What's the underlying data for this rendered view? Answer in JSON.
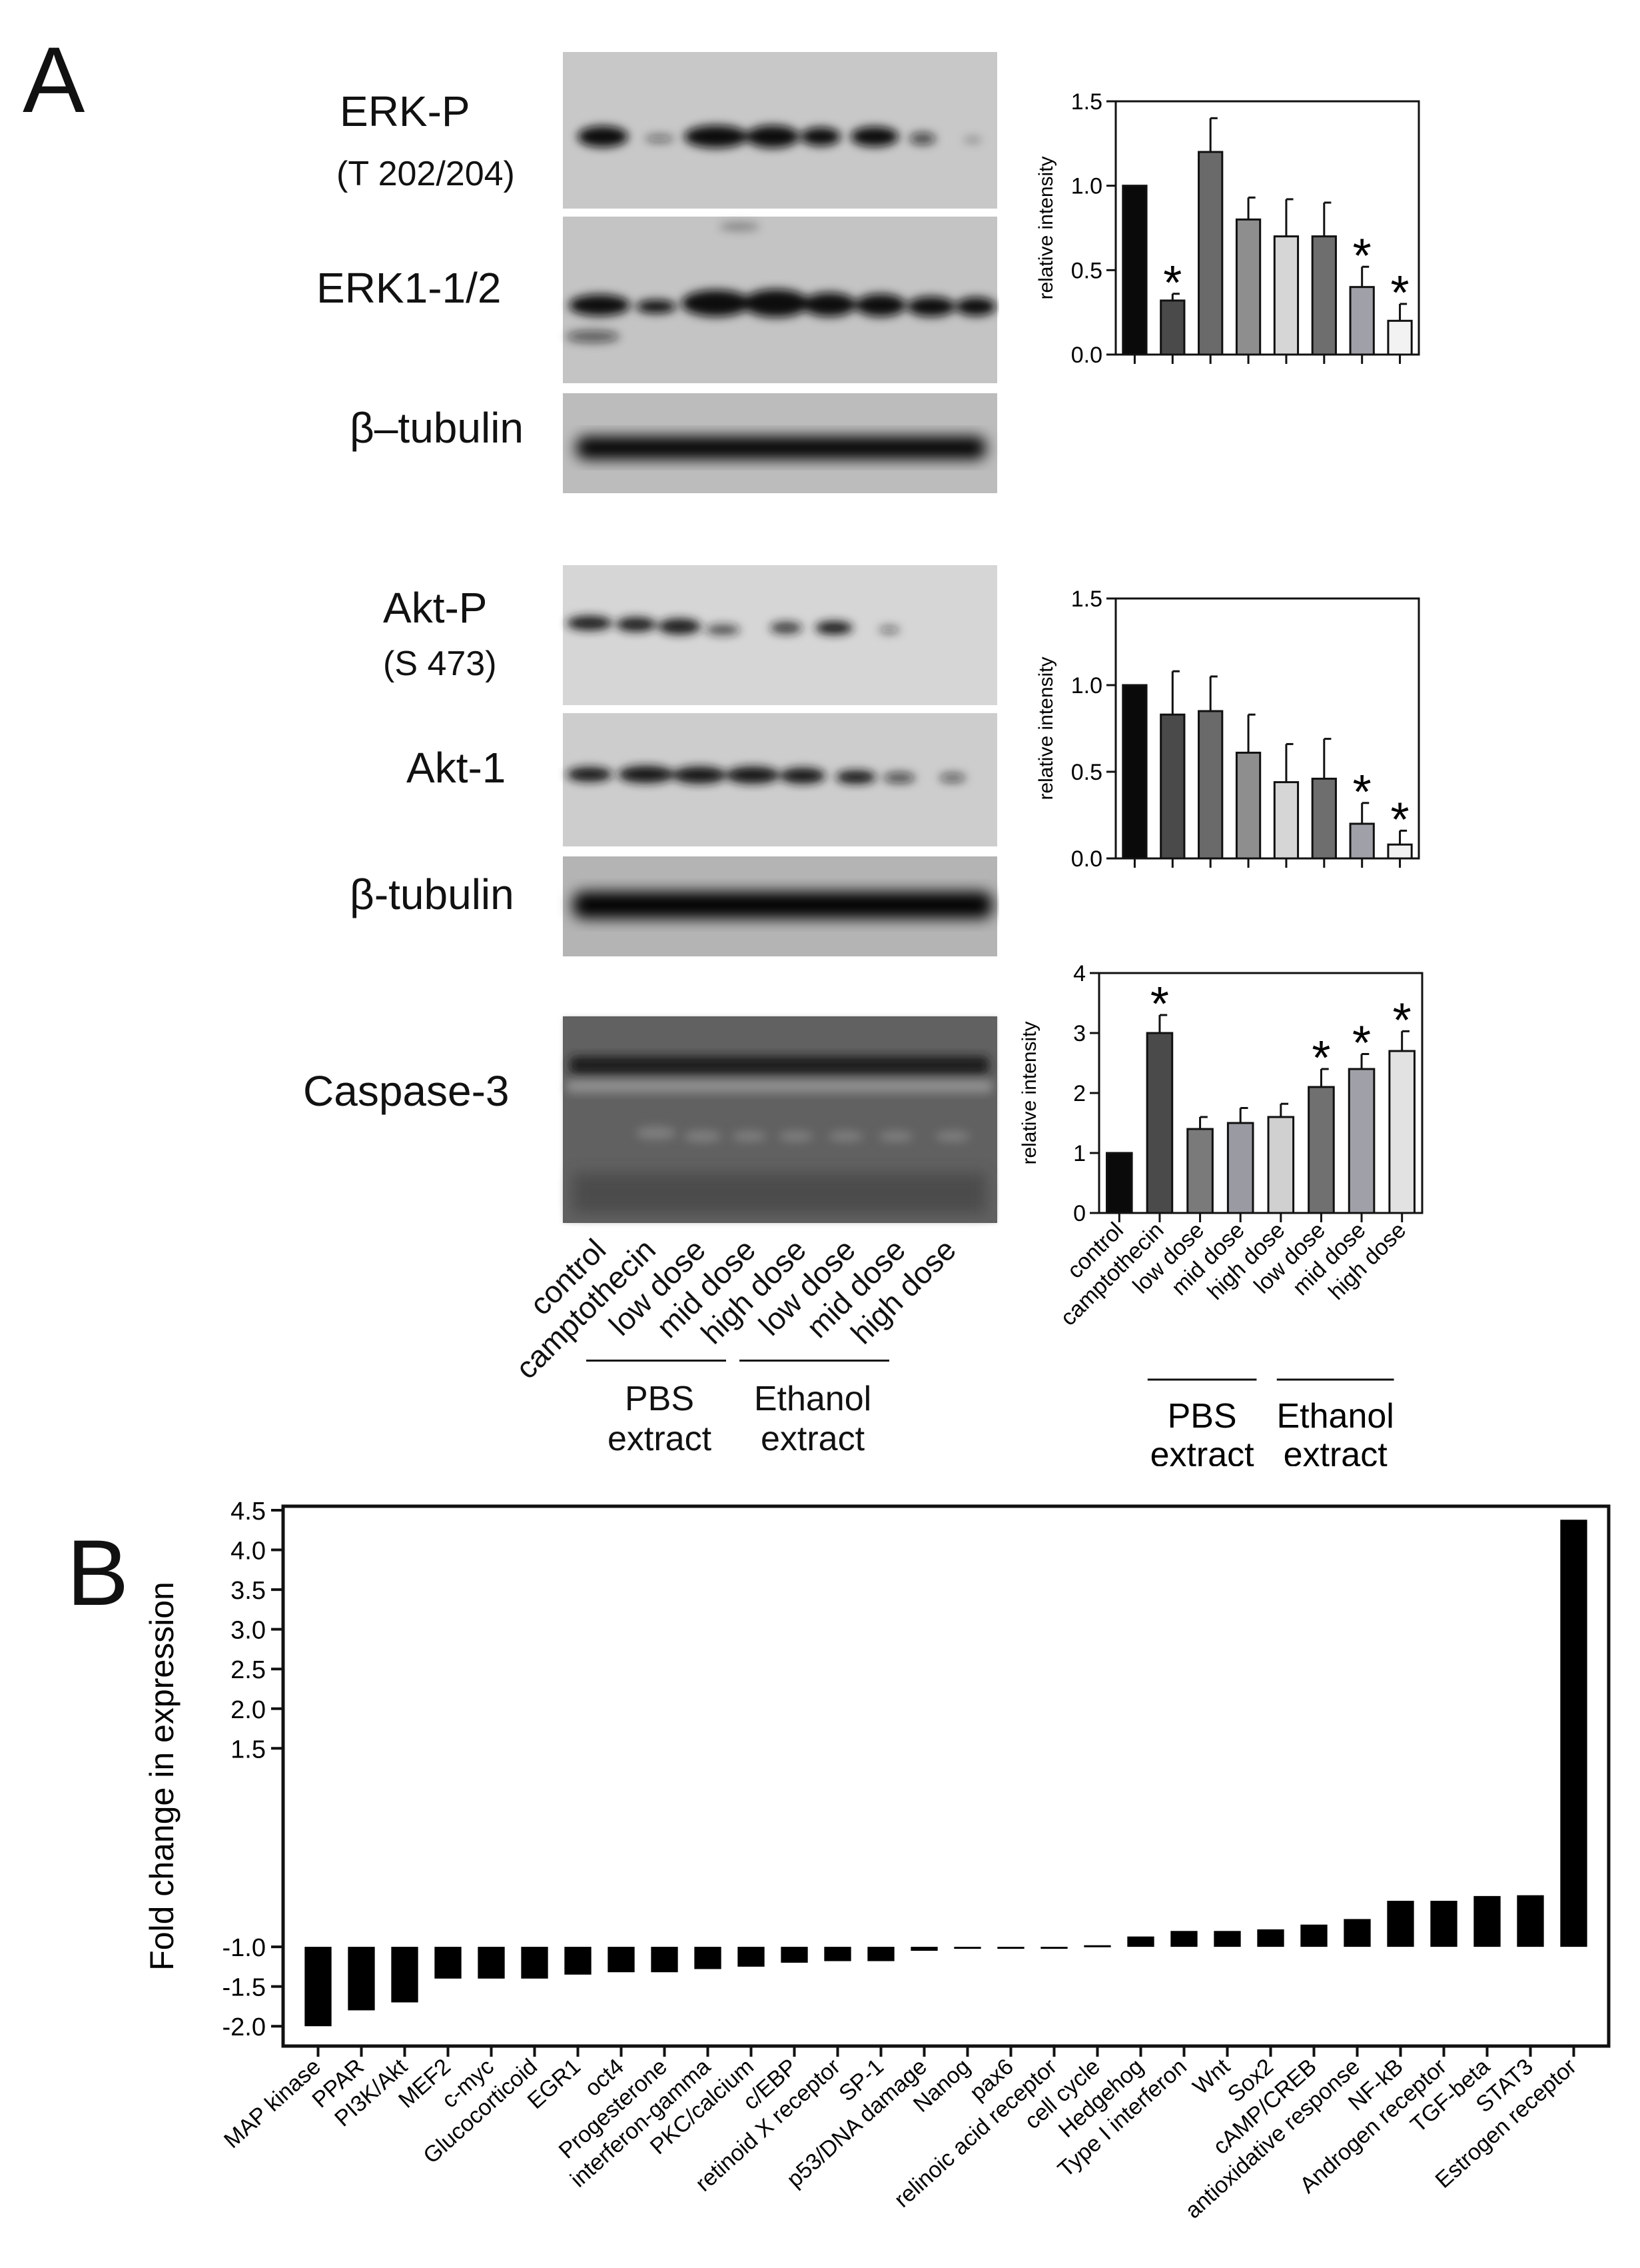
{
  "panel_a": {
    "letter": "A",
    "blots": [
      {
        "label": "ERK-P",
        "sub": "(T 202/204)"
      },
      {
        "label": "ERK1-1/2",
        "sub": ""
      },
      {
        "label": "β–tubulin",
        "sub": ""
      },
      {
        "label": "Akt-P",
        "sub": "(S 473)"
      },
      {
        "label": "Akt-1",
        "sub": ""
      },
      {
        "label": "β-tubulin",
        "sub": ""
      },
      {
        "label": "Caspase-3",
        "sub": ""
      }
    ],
    "lanes": [
      "control",
      "camptothecin",
      "low dose",
      "mid dose",
      "high dose",
      "low dose",
      "mid dose",
      "high dose"
    ],
    "groups": [
      {
        "line1": "PBS",
        "line2": "extract"
      },
      {
        "line1": "Ethanol",
        "line2": "extract"
      }
    ]
  },
  "panel_b": {
    "letter": "B"
  },
  "chart_data": [
    {
      "type": "bar",
      "id": "erk",
      "ylabel": "relative intensity",
      "ylim": [
        0,
        1.5
      ],
      "yticks": [
        "0.0",
        "0.5",
        "1.0",
        "1.5"
      ],
      "categories": [
        "control",
        "camptothecin",
        "low dose",
        "mid dose",
        "high dose",
        "low dose",
        "mid dose",
        "high dose"
      ],
      "values": [
        1.0,
        0.32,
        1.2,
        0.8,
        0.7,
        0.7,
        0.4,
        0.2
      ],
      "errors": [
        0,
        0.04,
        0.2,
        0.13,
        0.22,
        0.2,
        0.12,
        0.1
      ],
      "significant": [
        false,
        true,
        false,
        false,
        false,
        false,
        true,
        true
      ],
      "significance_mark": "*",
      "bar_colors": [
        "#0a0a0a",
        "#4a4a4a",
        "#6a6a6a",
        "#8e8e8e",
        "#d6d6d6",
        "#6e6e6e",
        "#a0a0a8",
        "#f2f2f2"
      ],
      "show_xlabels": false
    },
    {
      "type": "bar",
      "id": "akt",
      "ylabel": "relative intensity",
      "ylim": [
        0,
        1.5
      ],
      "yticks": [
        "0.0",
        "0.5",
        "1.0",
        "1.5"
      ],
      "categories": [
        "control",
        "camptothecin",
        "low dose",
        "mid dose",
        "high dose",
        "low dose",
        "mid dose",
        "high dose"
      ],
      "values": [
        1.0,
        0.83,
        0.85,
        0.61,
        0.44,
        0.46,
        0.2,
        0.08
      ],
      "errors": [
        0,
        0.25,
        0.2,
        0.22,
        0.22,
        0.23,
        0.12,
        0.08
      ],
      "significant": [
        false,
        false,
        false,
        false,
        false,
        false,
        true,
        true
      ],
      "significance_mark": "*",
      "bar_colors": [
        "#0a0a0a",
        "#4a4a4a",
        "#6a6a6a",
        "#8e8e8e",
        "#d6d6d6",
        "#6e6e6e",
        "#a0a0a8",
        "#f2f2f2"
      ],
      "show_xlabels": false
    },
    {
      "type": "bar",
      "id": "casp",
      "ylabel": "relative intensity",
      "ylim": [
        0,
        4
      ],
      "yticks": [
        "0",
        "1",
        "2",
        "3",
        "4"
      ],
      "categories": [
        "control",
        "camptothecin",
        "low dose",
        "mid dose",
        "high dose",
        "low dose",
        "mid dose",
        "high dose"
      ],
      "values": [
        1.0,
        3.0,
        1.4,
        1.5,
        1.6,
        2.1,
        2.4,
        2.7
      ],
      "errors": [
        0,
        0.3,
        0.2,
        0.25,
        0.22,
        0.3,
        0.25,
        0.33
      ],
      "significant": [
        false,
        true,
        false,
        false,
        false,
        true,
        true,
        true
      ],
      "significance_mark": "*",
      "bar_colors": [
        "#0a0a0a",
        "#4a4a4a",
        "#7a7a7a",
        "#9a9aa2",
        "#d0d0d0",
        "#707070",
        "#a0a0a8",
        "#e2e2e2"
      ],
      "show_xlabels": true,
      "groups": [
        {
          "line1": "PBS",
          "line2": "extract"
        },
        {
          "line1": "Ethanol",
          "line2": "extract"
        }
      ]
    },
    {
      "type": "bar",
      "id": "fold",
      "ylabel": "Fold change in expression",
      "ytick_labels": [
        "-2.0",
        "-1.5",
        "-1.0",
        "1.5",
        "2.0",
        "2.5",
        "3.0",
        "3.5",
        "4.0",
        "4.5"
      ],
      "ytick_positions": [
        -2.0,
        -1.5,
        -1.0,
        1.5,
        2.0,
        2.5,
        3.0,
        3.5,
        4.0,
        4.5
      ],
      "ylim": [
        -2.25,
        4.55
      ],
      "baseline": -1.0,
      "categories": [
        "MAP kinase",
        "PPAR",
        "PI3K/Akt",
        "MEF2",
        "c-myc",
        "Glucocorticoid",
        "EGR1",
        "oct4",
        "Progesterone",
        "interferon-gamma",
        "PKC/calcium",
        "c/EBP",
        "retinoid X receptor",
        "SP-1",
        "p53/DNA damage",
        "Nanog",
        "pax6",
        "relinoic acid receptor",
        "cell cycle",
        "Hedgehog",
        "Type I interferon",
        "Wnt",
        "Sox2",
        "cAMP/CREB",
        "antioxidative response",
        "NF-kB",
        "Androgen receptor",
        "TGF-beta",
        "STAT3",
        "Estrogen receptor"
      ],
      "values": [
        -2.0,
        -1.8,
        -1.7,
        -1.4,
        -1.4,
        -1.4,
        -1.35,
        -1.32,
        -1.32,
        -1.28,
        -1.25,
        -1.2,
        -1.18,
        -1.18,
        -1.05,
        -1.02,
        -1.02,
        -1.0,
        -0.98,
        -0.87,
        -0.8,
        -0.8,
        -0.78,
        -0.72,
        -0.65,
        -0.42,
        -0.42,
        -0.36,
        -0.35,
        4.38
      ],
      "bar_color": "#000000"
    }
  ]
}
